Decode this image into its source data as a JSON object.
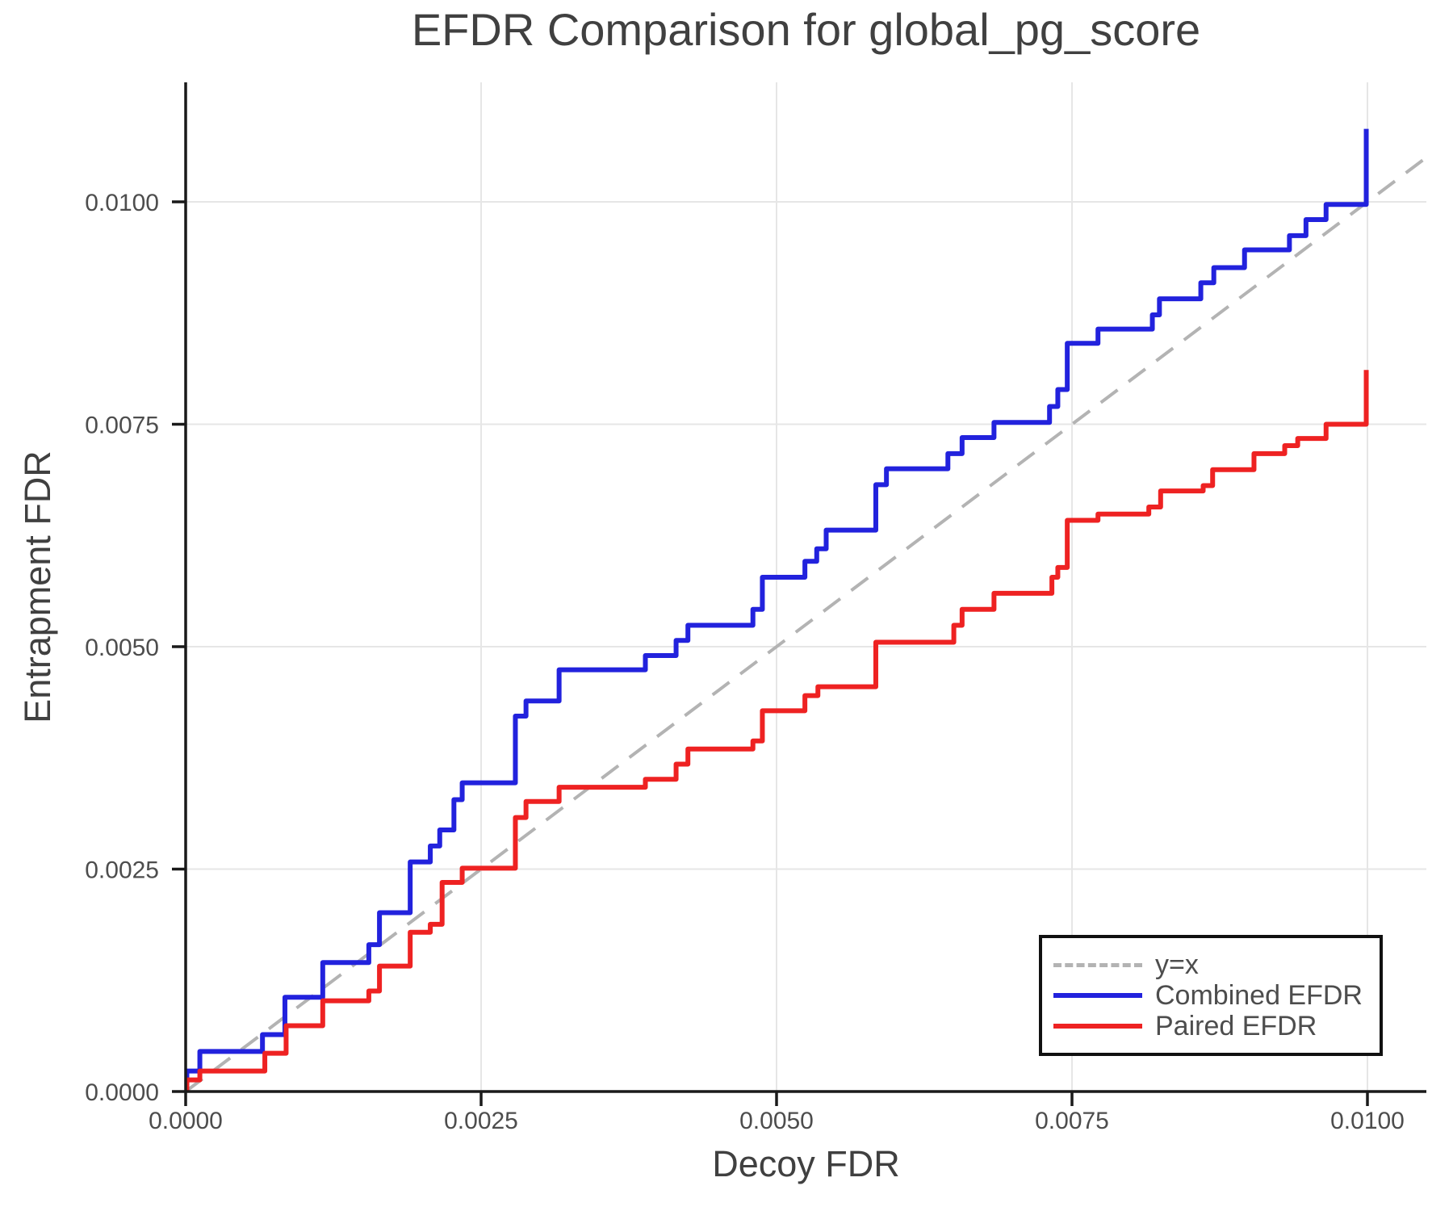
{
  "figure": {
    "title": "EFDR Comparison for global_pg_score",
    "x_axis_label": "Decoy FDR",
    "y_axis_label": "Entrapment FDR"
  },
  "legend": {
    "position": "lower right",
    "items": [
      {
        "label": "y=x",
        "color": "#b3b3b3",
        "style": "dashed"
      },
      {
        "label": "Combined EFDR",
        "color": "#2222dd",
        "style": "solid"
      },
      {
        "label": "Paired EFDR",
        "color": "#ee2222",
        "style": "solid"
      }
    ]
  },
  "colors": {
    "background": "#ffffff",
    "grid": "#e6e6e6",
    "spine": "#1a1a1a",
    "tick_label": "#4d4d4d",
    "title": "#404040"
  },
  "chart_data": {
    "type": "line",
    "subtype": "step-post",
    "title": "EFDR Comparison for global_pg_score",
    "xlabel": "Decoy FDR",
    "ylabel": "Entrapment FDR",
    "xlim": [
      0,
      0.0105
    ],
    "ylim": [
      0,
      0.01134
    ],
    "grid": true,
    "x_ticks": {
      "values": [
        0,
        0.0025,
        0.005,
        0.0075,
        0.01
      ],
      "labels": [
        "0.0000",
        "0.0025",
        "0.0050",
        "0.0075",
        "0.0100"
      ]
    },
    "y_ticks": {
      "values": [
        0,
        0.0025,
        0.005,
        0.0075,
        0.01
      ],
      "labels": [
        "0.0000",
        "0.0025",
        "0.0050",
        "0.0075",
        "0.0100"
      ]
    },
    "identity_line": {
      "name": "y=x",
      "color": "#b3b3b3",
      "dashed": true,
      "from": [
        0,
        0
      ],
      "to": [
        0.0105,
        0.0105
      ]
    },
    "series": [
      {
        "name": "Combined EFDR",
        "color": "#2222dd",
        "start_y": 8e-05,
        "steps": [
          [
            1e-05,
            0.00023
          ],
          [
            0.00012,
            0.00045
          ],
          [
            0.00065,
            0.00064
          ],
          [
            0.00084,
            0.00106
          ],
          [
            0.00116,
            0.00145
          ],
          [
            0.00155,
            0.00165
          ],
          [
            0.00164,
            0.00201
          ],
          [
            0.0019,
            0.00258
          ],
          [
            0.00207,
            0.00276
          ],
          [
            0.00215,
            0.00294
          ],
          [
            0.00227,
            0.00328
          ],
          [
            0.00234,
            0.00347
          ],
          [
            0.00279,
            0.00422
          ],
          [
            0.00288,
            0.00439
          ],
          [
            0.00316,
            0.00474
          ],
          [
            0.00389,
            0.0049
          ],
          [
            0.00415,
            0.00507
          ],
          [
            0.00425,
            0.00524
          ],
          [
            0.0048,
            0.00542
          ],
          [
            0.00488,
            0.00578
          ],
          [
            0.00524,
            0.00596
          ],
          [
            0.00534,
            0.0061
          ],
          [
            0.00542,
            0.00631
          ],
          [
            0.00584,
            0.00682
          ],
          [
            0.00593,
            0.007
          ],
          [
            0.00645,
            0.00717
          ],
          [
            0.00657,
            0.00735
          ],
          [
            0.00684,
            0.00752
          ],
          [
            0.00731,
            0.0077
          ],
          [
            0.00738,
            0.00789
          ],
          [
            0.00746,
            0.00841
          ],
          [
            0.00772,
            0.00857
          ],
          [
            0.00818,
            0.00873
          ],
          [
            0.00824,
            0.00891
          ],
          [
            0.00859,
            0.00909
          ],
          [
            0.0087,
            0.00926
          ],
          [
            0.00896,
            0.00946
          ],
          [
            0.00934,
            0.00962
          ],
          [
            0.00948,
            0.0098
          ],
          [
            0.00965,
            0.00997
          ],
          [
            0.00999,
            0.01082
          ]
        ]
      },
      {
        "name": "Paired EFDR",
        "color": "#ee2222",
        "start_y": 2e-05,
        "steps": [
          [
            1e-05,
            0.00013
          ],
          [
            0.00012,
            0.00023
          ],
          [
            0.00067,
            0.00043
          ],
          [
            0.00085,
            0.00074
          ],
          [
            0.00116,
            0.00102
          ],
          [
            0.00155,
            0.00113
          ],
          [
            0.00164,
            0.00141
          ],
          [
            0.0019,
            0.00179
          ],
          [
            0.00207,
            0.00188
          ],
          [
            0.00217,
            0.00235
          ],
          [
            0.00234,
            0.00251
          ],
          [
            0.00279,
            0.00308
          ],
          [
            0.00288,
            0.00326
          ],
          [
            0.00316,
            0.00342
          ],
          [
            0.00389,
            0.00351
          ],
          [
            0.00415,
            0.00368
          ],
          [
            0.00425,
            0.00385
          ],
          [
            0.0048,
            0.00394
          ],
          [
            0.00488,
            0.00428
          ],
          [
            0.00524,
            0.00445
          ],
          [
            0.00535,
            0.00455
          ],
          [
            0.00584,
            0.00505
          ],
          [
            0.0065,
            0.00524
          ],
          [
            0.00657,
            0.00542
          ],
          [
            0.00684,
            0.0056
          ],
          [
            0.00733,
            0.00578
          ],
          [
            0.00738,
            0.00589
          ],
          [
            0.00746,
            0.00642
          ],
          [
            0.00772,
            0.00649
          ],
          [
            0.00815,
            0.00657
          ],
          [
            0.00825,
            0.00675
          ],
          [
            0.00861,
            0.00681
          ],
          [
            0.00869,
            0.00699
          ],
          [
            0.00904,
            0.00717
          ],
          [
            0.0093,
            0.00726
          ],
          [
            0.00941,
            0.00734
          ],
          [
            0.00965,
            0.0075
          ],
          [
            0.00999,
            0.00811
          ]
        ]
      }
    ]
  }
}
